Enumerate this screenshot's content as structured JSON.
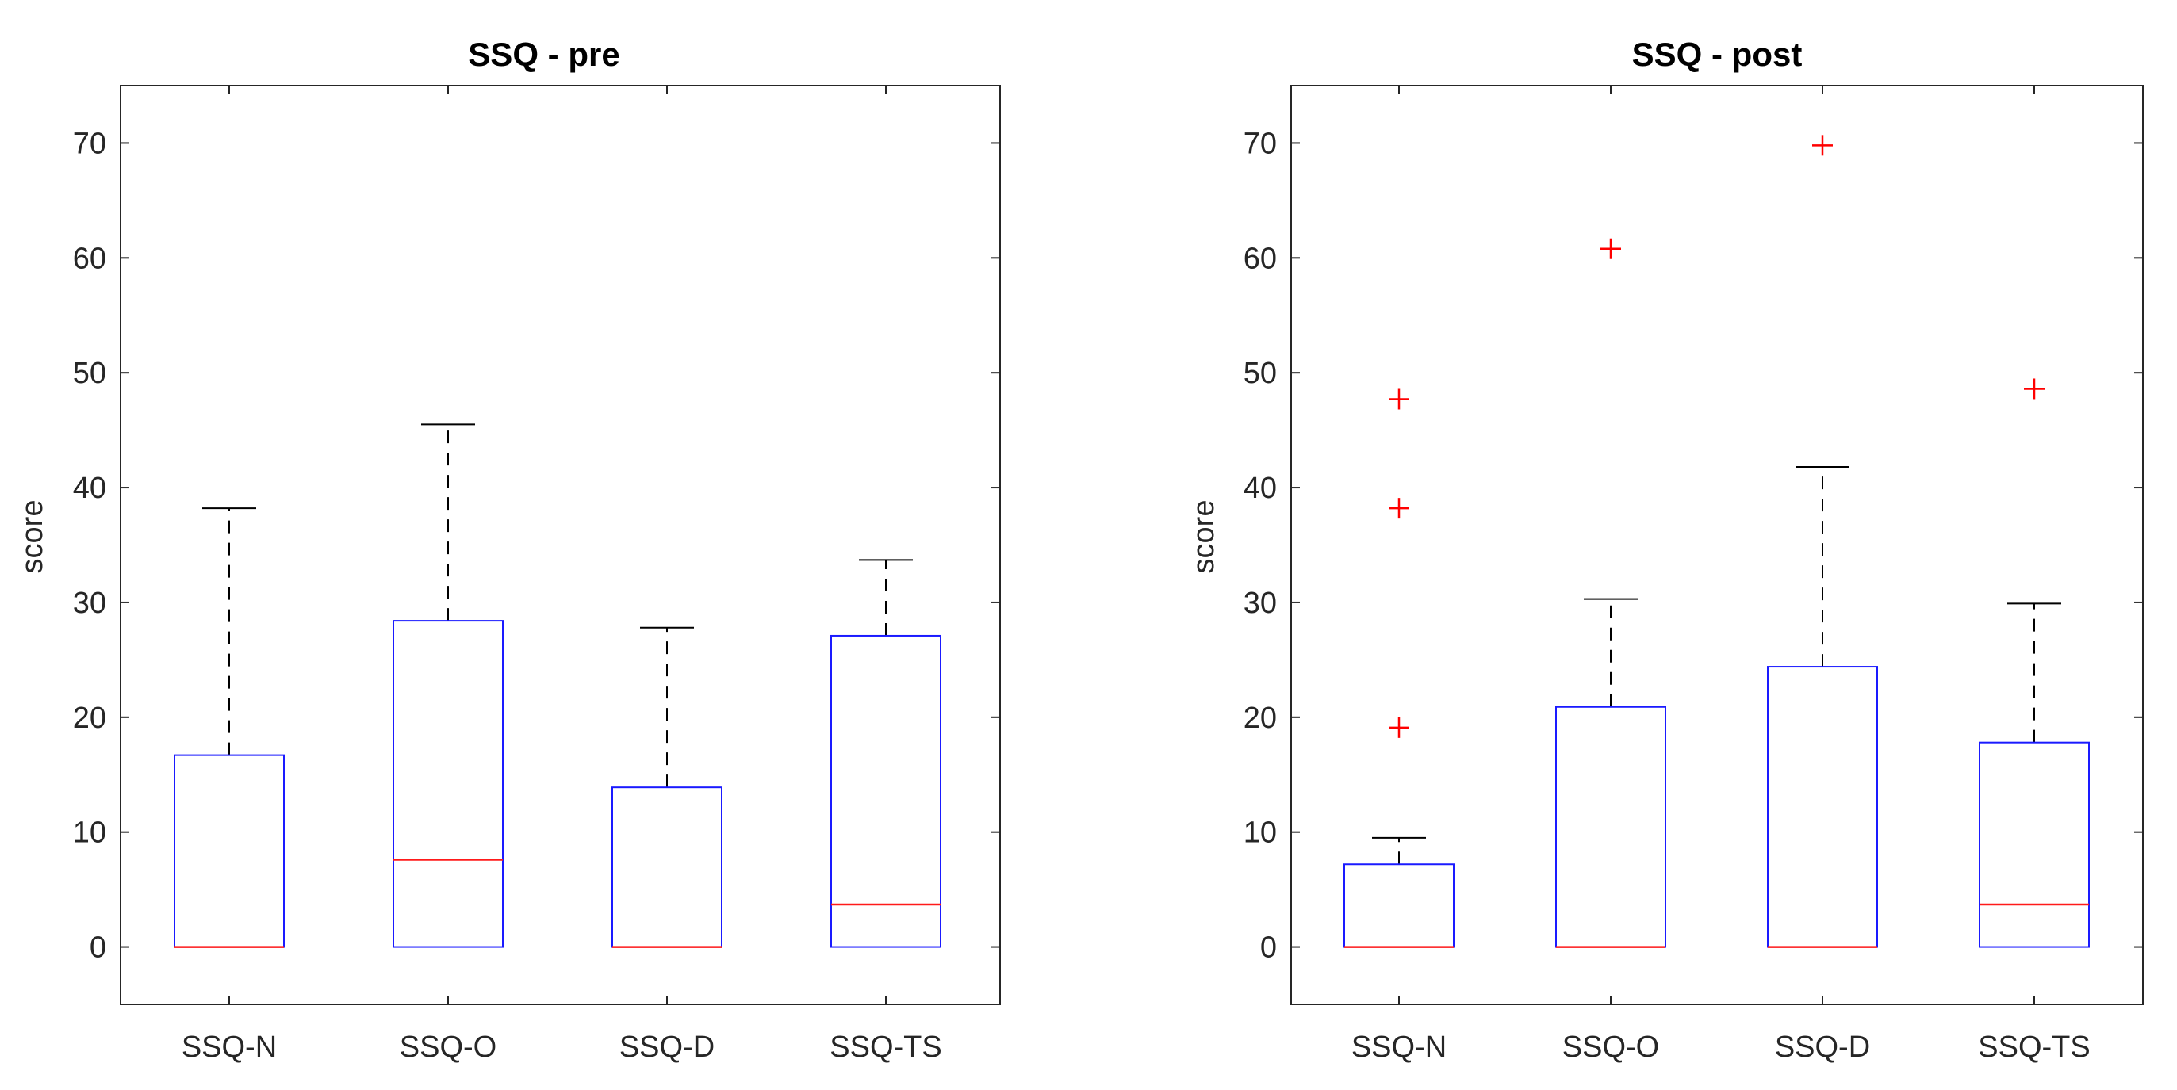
{
  "colors": {
    "box": "#1a1aff",
    "median": "#ff1a1a",
    "whisker": "#000000",
    "outlier": "#ff0000",
    "axis": "#262626"
  },
  "chart_data": [
    {
      "type": "box",
      "title": "SSQ - pre",
      "xlabel": "",
      "ylabel": "score",
      "ylim": [
        -5,
        75
      ],
      "yticks": [
        0,
        10,
        20,
        30,
        40,
        50,
        60,
        70
      ],
      "yticklabels": [
        "0",
        "10",
        "20",
        "30",
        "40",
        "50",
        "60",
        "70"
      ],
      "categories": [
        "SSQ-N",
        "SSQ-O",
        "SSQ-D",
        "SSQ-TS"
      ],
      "boxes": [
        {
          "name": "SSQ-N",
          "lower_whisker": 0,
          "q1": 0,
          "median": 0,
          "q3": 16.7,
          "upper_whisker": 38.2,
          "outliers": []
        },
        {
          "name": "SSQ-O",
          "lower_whisker": 0,
          "q1": 0,
          "median": 7.6,
          "q3": 28.4,
          "upper_whisker": 45.5,
          "outliers": []
        },
        {
          "name": "SSQ-D",
          "lower_whisker": 0,
          "q1": 0,
          "median": 0,
          "q3": 13.9,
          "upper_whisker": 27.8,
          "outliers": []
        },
        {
          "name": "SSQ-TS",
          "lower_whisker": 0,
          "q1": 0,
          "median": 3.7,
          "q3": 27.1,
          "upper_whisker": 33.7,
          "outliers": []
        }
      ]
    },
    {
      "type": "box",
      "title": "SSQ - post",
      "xlabel": "",
      "ylabel": "score",
      "ylim": [
        -5,
        75
      ],
      "yticks": [
        0,
        10,
        20,
        30,
        40,
        50,
        60,
        70
      ],
      "yticklabels": [
        "0",
        "10",
        "20",
        "30",
        "40",
        "50",
        "60",
        "70"
      ],
      "categories": [
        "SSQ-N",
        "SSQ-O",
        "SSQ-D",
        "SSQ-TS"
      ],
      "boxes": [
        {
          "name": "SSQ-N",
          "lower_whisker": 0,
          "q1": 0,
          "median": 0,
          "q3": 7.2,
          "upper_whisker": 9.5,
          "outliers": [
            19.1,
            38.2,
            47.7
          ]
        },
        {
          "name": "SSQ-O",
          "lower_whisker": 0,
          "q1": 0,
          "median": 0,
          "q3": 20.9,
          "upper_whisker": 30.3,
          "outliers": [
            60.8
          ]
        },
        {
          "name": "SSQ-D",
          "lower_whisker": 0,
          "q1": 0,
          "median": 0,
          "q3": 24.4,
          "upper_whisker": 41.8,
          "outliers": [
            69.8
          ]
        },
        {
          "name": "SSQ-TS",
          "lower_whisker": 0,
          "q1": 0,
          "median": 3.7,
          "q3": 17.8,
          "upper_whisker": 29.9,
          "outliers": [
            48.6
          ]
        }
      ]
    }
  ]
}
